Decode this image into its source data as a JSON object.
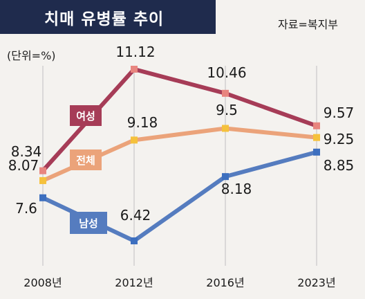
{
  "title": "치매 유병률 추이",
  "source": "자료=복지부",
  "unit": "(단위=%)",
  "colors": {
    "title_bg": "#1f2b4d",
    "female": "#a63c57",
    "total": "#eba37a",
    "male": "#557cbf",
    "female_marker": "#e8857f",
    "total_marker": "#f5c13c",
    "male_marker": "#3d6fbf",
    "grid": "#c8c8c8"
  },
  "chart_data": {
    "type": "line",
    "categories": [
      "2008년",
      "2012년",
      "2016년",
      "2023년"
    ],
    "series": [
      {
        "name": "여성",
        "key": "female",
        "values": [
          8.34,
          11.12,
          10.46,
          9.57
        ],
        "labels": [
          "8.34",
          "11.12",
          "10.46",
          "9.57"
        ]
      },
      {
        "name": "전체",
        "key": "total",
        "values": [
          8.07,
          9.18,
          9.5,
          9.25
        ],
        "labels": [
          "8.07",
          "9.18",
          "9.5",
          "9.25"
        ]
      },
      {
        "name": "남성",
        "key": "male",
        "values": [
          7.6,
          6.42,
          8.18,
          8.85
        ],
        "labels": [
          "7.6",
          "6.42",
          "8.18",
          "8.85"
        ]
      }
    ],
    "grid": "vertical",
    "legend": "inline labels"
  }
}
